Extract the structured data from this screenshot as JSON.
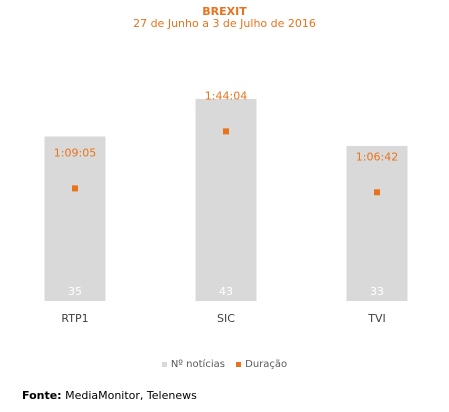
{
  "chart_data": {
    "type": "bar",
    "title": "BREXIT",
    "subtitle": "27 de Junho a 3 de Julho de 2016",
    "categories": [
      "RTP1",
      "SIC",
      "TVI"
    ],
    "series": [
      {
        "name": "Nº notícias",
        "type": "bar",
        "values": [
          35,
          43,
          33
        ]
      },
      {
        "name": "Duração",
        "type": "marker",
        "values": [
          69.08,
          104.07,
          66.7
        ],
        "labels": [
          "1:09:05",
          "1:44:04",
          "1:06:42"
        ]
      }
    ],
    "colors": {
      "bars": "#d9d9d9",
      "markers": "#e8731c",
      "bar_labels": "#ffffff",
      "marker_labels": "#e8731c"
    },
    "legend": "bottom",
    "grid": false
  },
  "source": {
    "label": "Fonte:",
    "text": " MediaMonitor, Telenews"
  }
}
